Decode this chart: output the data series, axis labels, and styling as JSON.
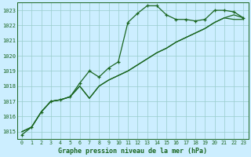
{
  "xlabel": "Graphe pression niveau de la mer (hPa)",
  "background_color": "#cceeff",
  "grid_color": "#99cccc",
  "line_color": "#1a6620",
  "ylim": [
    1014.5,
    1023.5
  ],
  "xlim": [
    -0.5,
    23.5
  ],
  "yticks": [
    1015,
    1016,
    1017,
    1018,
    1019,
    1020,
    1021,
    1022,
    1023
  ],
  "xticks": [
    0,
    1,
    2,
    3,
    4,
    5,
    6,
    7,
    8,
    9,
    10,
    11,
    12,
    13,
    14,
    15,
    16,
    17,
    18,
    19,
    20,
    21,
    22,
    23
  ],
  "series1": [
    1014.8,
    1015.3,
    1016.3,
    1017.0,
    1017.1,
    1017.3,
    1018.2,
    1019.0,
    1018.6,
    1019.2,
    1019.6,
    1022.2,
    1022.8,
    1023.3,
    1023.3,
    1022.7,
    1022.4,
    1022.4,
    1022.3,
    1022.4,
    1023.0,
    1023.0,
    1022.9,
    1022.5
  ],
  "series2": [
    1015.0,
    1015.3,
    1016.3,
    1017.0,
    1017.1,
    1017.3,
    1018.0,
    1017.2,
    1018.0,
    1018.4,
    1018.7,
    1019.0,
    1019.4,
    1019.8,
    1020.2,
    1020.5,
    1020.9,
    1021.2,
    1021.5,
    1021.8,
    1022.2,
    1022.5,
    1022.7,
    1022.5
  ],
  "series3": [
    1015.0,
    1015.3,
    1016.3,
    1017.0,
    1017.1,
    1017.3,
    1018.0,
    1017.2,
    1018.0,
    1018.4,
    1018.7,
    1019.0,
    1019.4,
    1019.8,
    1020.2,
    1020.5,
    1020.9,
    1021.2,
    1021.5,
    1021.8,
    1022.2,
    1022.5,
    1022.4,
    1022.4
  ]
}
